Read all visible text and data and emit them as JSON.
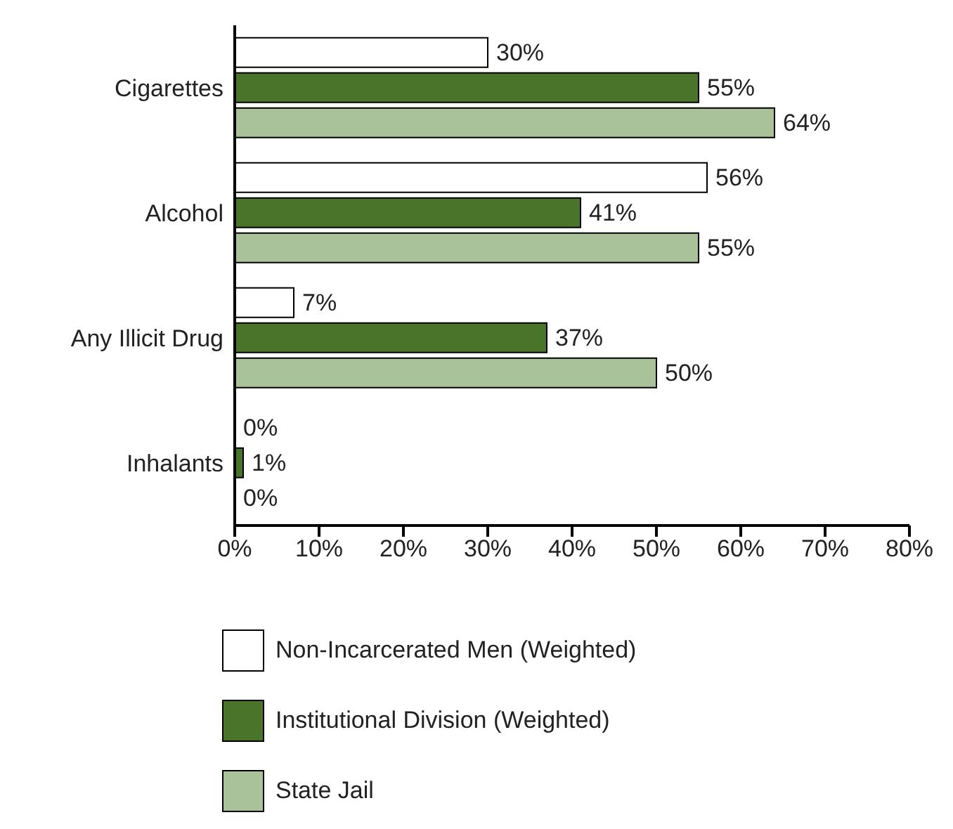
{
  "chart_data": {
    "type": "bar",
    "orientation": "horizontal",
    "categories": [
      "Cigarettes",
      "Alcohol",
      "Any Illicit Drug",
      "Inhalants"
    ],
    "series": [
      {
        "name": "Non-Incarcerated Men (Weighted)",
        "color": "#ffffff",
        "values": [
          30,
          56,
          7,
          0
        ],
        "value_labels": [
          "30%",
          "56%",
          "7%",
          "0%"
        ]
      },
      {
        "name": "Institutional Division (Weighted)",
        "color": "#4a742a",
        "values": [
          55,
          41,
          37,
          1
        ],
        "value_labels": [
          "55%",
          "41%",
          "37%",
          "1%"
        ]
      },
      {
        "name": "State Jail",
        "color": "#aac29a",
        "values": [
          64,
          55,
          50,
          0
        ],
        "value_labels": [
          "64%",
          "55%",
          "50%",
          "0%"
        ]
      }
    ],
    "xlim": [
      0,
      80
    ],
    "xticks": [
      {
        "value": 0,
        "label": "0%"
      },
      {
        "value": 10,
        "label": "10%"
      },
      {
        "value": 20,
        "label": "20%"
      },
      {
        "value": 30,
        "label": "30%"
      },
      {
        "value": 40,
        "label": "40%"
      },
      {
        "value": 50,
        "label": "50%"
      },
      {
        "value": 60,
        "label": "60%"
      },
      {
        "value": 70,
        "label": "70%"
      },
      {
        "value": 80,
        "label": "80%"
      }
    ],
    "grid": false,
    "legend": "bottom"
  }
}
